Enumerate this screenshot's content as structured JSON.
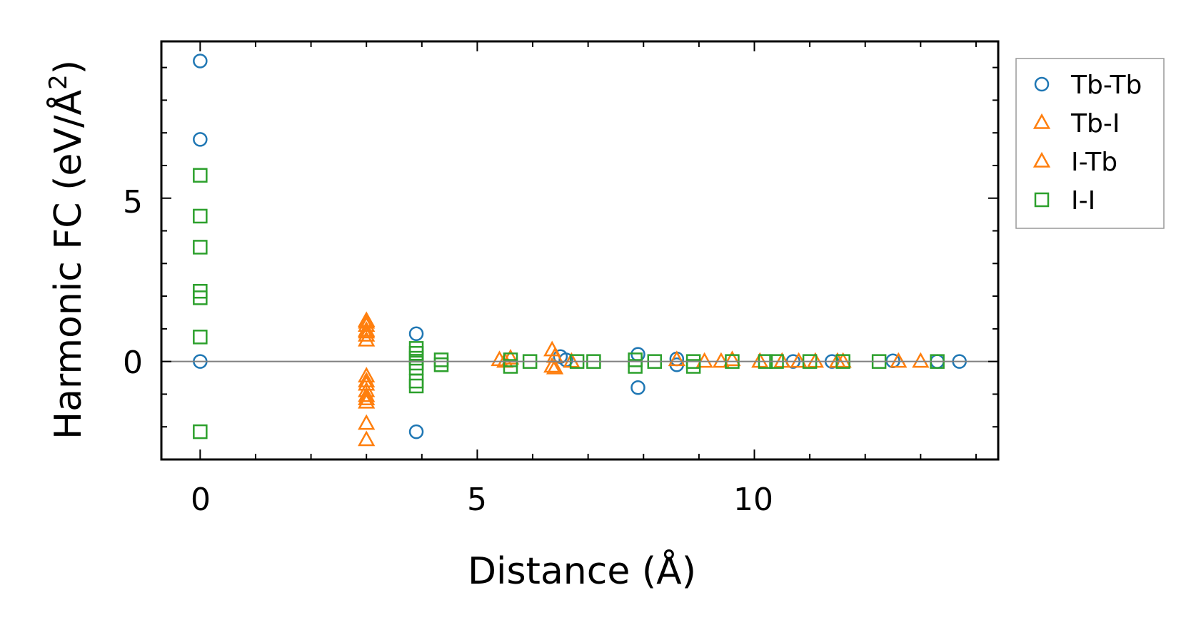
{
  "chart_data": {
    "type": "scatter",
    "title": "",
    "xlabel": "Distance (Å)",
    "ylabel": "Harmonic FC (eV/Å",
    "ylabel_superscript": "2",
    "ylabel_close": ")",
    "xlim": [
      -0.7,
      14.4
    ],
    "ylim": [
      -3.0,
      9.8
    ],
    "xticks": [
      0,
      5,
      10
    ],
    "xtick_labels": [
      "0",
      "5",
      "10"
    ],
    "yticks": [
      0,
      5
    ],
    "ytick_labels": [
      "0",
      "5"
    ],
    "zero_line": true,
    "legend_position": "right-top-outside",
    "series": [
      {
        "name": "Tb-Tb",
        "marker": "circle",
        "color": "#1f77b4",
        "points": [
          [
            0,
            9.2
          ],
          [
            0,
            6.8
          ],
          [
            0,
            0.0
          ],
          [
            3.9,
            0.85
          ],
          [
            3.9,
            -2.15
          ],
          [
            6.5,
            0.15
          ],
          [
            6.6,
            0.05
          ],
          [
            7.9,
            0.22
          ],
          [
            7.9,
            -0.8
          ],
          [
            8.6,
            0.08
          ],
          [
            8.6,
            -0.1
          ],
          [
            10.7,
            0.0
          ],
          [
            11.4,
            0.0
          ],
          [
            12.5,
            0.02
          ],
          [
            13.3,
            0.0
          ],
          [
            13.7,
            0.0
          ]
        ]
      },
      {
        "name": "Tb-I",
        "marker": "triangle",
        "color": "#ff7f0e",
        "points": [
          [
            3.0,
            1.25
          ],
          [
            3.0,
            1.1
          ],
          [
            3.0,
            0.95
          ],
          [
            3.0,
            0.8
          ],
          [
            3.0,
            0.65
          ],
          [
            3.0,
            -0.45
          ],
          [
            3.0,
            -0.7
          ],
          [
            3.0,
            -0.9
          ],
          [
            3.0,
            -1.05
          ],
          [
            3.0,
            -1.25
          ],
          [
            3.0,
            -1.9
          ],
          [
            3.0,
            -2.4
          ],
          [
            5.4,
            0.05
          ],
          [
            5.6,
            0.1
          ],
          [
            6.35,
            0.35
          ],
          [
            6.35,
            -0.15
          ],
          [
            8.6,
            0.05
          ],
          [
            9.1,
            0.0
          ],
          [
            10.1,
            0.0
          ],
          [
            11.1,
            0.0
          ],
          [
            11.6,
            0.0
          ],
          [
            12.6,
            0.0
          ],
          [
            13.0,
            0.0
          ]
        ]
      },
      {
        "name": "I-Tb",
        "marker": "triangle",
        "color": "#ff7f0e",
        "points": [
          [
            3.0,
            1.2
          ],
          [
            3.0,
            0.9
          ],
          [
            3.0,
            -0.6
          ],
          [
            3.0,
            -1.15
          ],
          [
            5.5,
            0.0
          ],
          [
            6.4,
            0.15
          ],
          [
            6.4,
            -0.2
          ],
          [
            6.7,
            0.0
          ],
          [
            9.4,
            0.0
          ],
          [
            9.6,
            0.05
          ],
          [
            10.5,
            0.0
          ],
          [
            10.8,
            0.0
          ],
          [
            11.5,
            0.0
          ]
        ]
      },
      {
        "name": "I-I",
        "marker": "square",
        "color": "#2ca02c",
        "points": [
          [
            0,
            5.7
          ],
          [
            0,
            4.45
          ],
          [
            0,
            3.5
          ],
          [
            0,
            2.15
          ],
          [
            0,
            1.95
          ],
          [
            0,
            0.75
          ],
          [
            0,
            -2.15
          ],
          [
            3.9,
            0.4
          ],
          [
            3.9,
            0.25
          ],
          [
            3.9,
            0.1
          ],
          [
            3.9,
            -0.05
          ],
          [
            3.9,
            -0.2
          ],
          [
            3.9,
            -0.6
          ],
          [
            3.9,
            -0.75
          ],
          [
            4.35,
            0.05
          ],
          [
            4.35,
            -0.1
          ],
          [
            5.6,
            0.05
          ],
          [
            5.6,
            -0.15
          ],
          [
            5.95,
            0.0
          ],
          [
            6.8,
            0.0
          ],
          [
            7.1,
            0.0
          ],
          [
            7.85,
            0.05
          ],
          [
            7.85,
            -0.15
          ],
          [
            8.2,
            0.0
          ],
          [
            8.9,
            0.0
          ],
          [
            8.9,
            -0.15
          ],
          [
            9.6,
            0.0
          ],
          [
            10.2,
            0.0
          ],
          [
            10.4,
            0.0
          ],
          [
            11.0,
            0.0
          ],
          [
            11.6,
            0.0
          ],
          [
            12.25,
            0.0
          ],
          [
            13.3,
            0.0
          ]
        ]
      }
    ]
  }
}
